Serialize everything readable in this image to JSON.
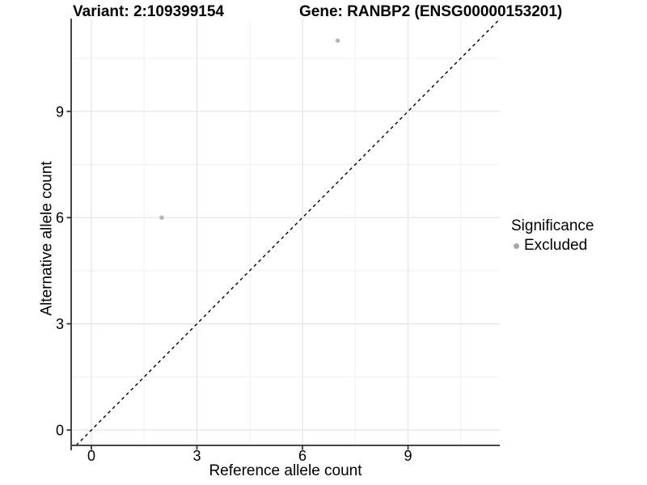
{
  "chart_data": {
    "type": "scatter",
    "title_left": "Variant: 2:109399154",
    "title_right": "Gene: RANBP2 (ENSG00000153201)",
    "xlabel": "Reference allele count",
    "ylabel": "Alternative allele count",
    "xlim": [
      -0.57,
      11.61
    ],
    "ylim": [
      -0.43,
      11.62
    ],
    "x_major_ticks": [
      0,
      3,
      6,
      9
    ],
    "y_major_ticks": [
      0,
      3,
      6,
      9
    ],
    "x_minor_ticks": [
      1.5,
      4.5,
      7.5,
      10.5
    ],
    "y_minor_ticks": [
      1.5,
      4.5,
      7.5,
      10.5
    ],
    "grid": true,
    "reference_line": {
      "type": "identity",
      "slope": 1,
      "intercept": 0,
      "style": "dashed",
      "color": "#000000"
    },
    "series": [
      {
        "name": "Excluded",
        "color": "#b5b5b5",
        "points": [
          [
            2,
            6
          ],
          [
            7,
            11
          ]
        ]
      }
    ],
    "legend": {
      "title": "Significance",
      "position": "right",
      "items": [
        {
          "label": "Excluded",
          "color": "#a8a8a8"
        }
      ]
    },
    "colors": {
      "axis_line": "#464646",
      "tick_mark": "#333333",
      "grid_major": "#e4e4e4",
      "grid_minor": "#f0f0f0",
      "point": "#b5b5b5",
      "text": "#000000"
    }
  }
}
